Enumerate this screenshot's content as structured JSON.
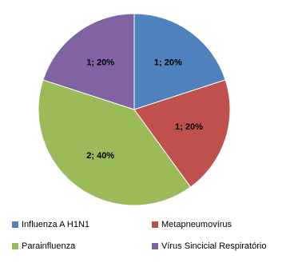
{
  "chart_data": {
    "type": "pie",
    "categories": [
      "Influenza A H1N1",
      "Metapneumovírus",
      "Parainfluenza",
      "Vírus Sincicial Respiratório"
    ],
    "values": [
      1,
      1,
      2,
      1
    ],
    "value_labels": [
      "1; 20%",
      "1; 20%",
      "2; 40%",
      "1; 20%"
    ],
    "colors": [
      "#4f81bd",
      "#c0504d",
      "#9bbb59",
      "#8064a2"
    ]
  }
}
